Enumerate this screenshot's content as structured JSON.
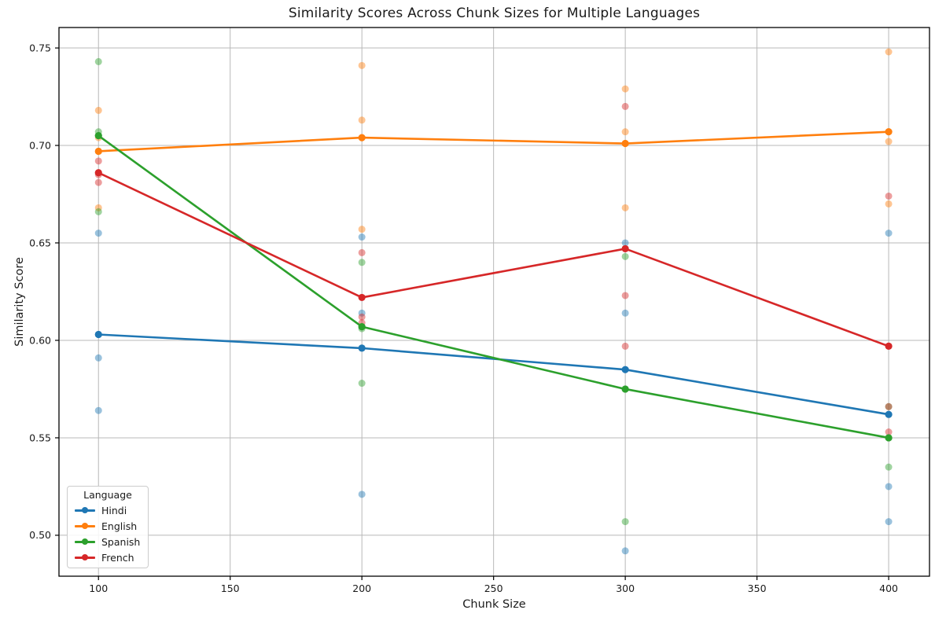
{
  "chart_data": {
    "type": "line",
    "subtype": "line-with-scatter",
    "title": "Similarity Scores Across Chunk Sizes for Multiple Languages",
    "xlabel": "Chunk Size",
    "ylabel": "Similarity Score",
    "x": [
      100,
      200,
      300,
      400
    ],
    "xticks": [
      100,
      150,
      200,
      250,
      300,
      350,
      400
    ],
    "yticks": [
      0.5,
      0.55,
      0.6,
      0.65,
      0.7,
      0.75
    ],
    "xlim": [
      85,
      415.5
    ],
    "ylim": [
      0.479,
      0.7605
    ],
    "grid": true,
    "grid_color": "#b8b8b8",
    "spine_color": "#000000",
    "scatter_alpha": 0.45,
    "legend": {
      "title": "Language",
      "position": "lower-left"
    },
    "series": [
      {
        "name": "Hindi",
        "color": "#1f77b4",
        "mean": [
          0.603,
          0.596,
          0.585,
          0.562
        ],
        "points": [
          [
            0.655,
            0.591,
            0.564
          ],
          [
            0.653,
            0.614,
            0.521
          ],
          [
            0.65,
            0.614,
            0.492
          ],
          [
            0.655,
            0.525,
            0.507
          ]
        ]
      },
      {
        "name": "English",
        "color": "#ff7f0e",
        "mean": [
          0.697,
          0.704,
          0.701,
          0.707
        ],
        "points": [
          [
            0.718,
            0.704,
            0.668
          ],
          [
            0.741,
            0.713,
            0.657
          ],
          [
            0.729,
            0.707,
            0.668
          ],
          [
            0.748,
            0.702,
            0.67
          ]
        ]
      },
      {
        "name": "Spanish",
        "color": "#2ca02c",
        "mean": [
          0.705,
          0.607,
          0.575,
          0.55
        ],
        "points": [
          [
            0.743,
            0.707,
            0.666
          ],
          [
            0.64,
            0.606,
            0.578
          ],
          [
            0.643,
            0.575,
            0.507
          ],
          [
            0.566,
            0.55,
            0.535
          ]
        ]
      },
      {
        "name": "French",
        "color": "#d62728",
        "mean": [
          0.686,
          0.622,
          0.647,
          0.597
        ],
        "points": [
          [
            0.692,
            0.685,
            0.681
          ],
          [
            0.645,
            0.612,
            0.609
          ],
          [
            0.72,
            0.623,
            0.597
          ],
          [
            0.674,
            0.566,
            0.553
          ]
        ]
      }
    ]
  }
}
